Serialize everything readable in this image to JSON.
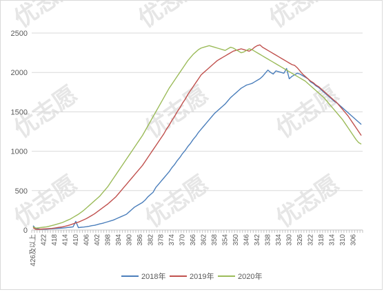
{
  "chart_data": {
    "type": "line",
    "title": "",
    "xlabel": "",
    "ylabel": "",
    "ylim": [
      0,
      2500
    ],
    "yticks": [
      0,
      500,
      1000,
      1500,
      2000,
      2500
    ],
    "x": [
      "426及以上",
      425,
      424,
      423,
      422,
      421,
      420,
      419,
      418,
      417,
      416,
      415,
      414,
      413,
      412,
      411,
      410,
      409,
      408,
      407,
      406,
      405,
      404,
      403,
      402,
      401,
      400,
      399,
      398,
      397,
      396,
      395,
      394,
      393,
      392,
      391,
      390,
      389,
      388,
      387,
      386,
      385,
      384,
      383,
      382,
      381,
      380,
      379,
      378,
      377,
      376,
      375,
      374,
      373,
      372,
      371,
      370,
      369,
      368,
      367,
      366,
      365,
      364,
      363,
      362,
      361,
      360,
      359,
      358,
      357,
      356,
      355,
      354,
      353,
      352,
      351,
      350,
      349,
      348,
      347,
      346,
      345,
      344,
      343,
      342,
      341,
      340,
      339,
      338,
      337,
      336,
      335,
      334,
      333,
      332,
      331,
      330,
      329,
      328,
      327,
      326,
      325,
      324,
      323,
      322,
      321,
      320,
      319,
      318,
      317,
      316,
      315,
      314,
      313,
      312,
      311,
      310,
      309,
      308,
      307,
      306,
      305,
      304,
      303
    ],
    "x_tick_labels": [
      "426及以上",
      "422",
      "418",
      "414",
      "410",
      "406",
      "402",
      "398",
      "394",
      "390",
      "386",
      "382",
      "378",
      "374",
      "370",
      "366",
      "362",
      "358",
      "354",
      "350",
      "346",
      "342",
      "338",
      "334",
      "330",
      "326",
      "322",
      "318",
      "314",
      "310",
      "306"
    ],
    "grid": true,
    "legend_position": "bottom",
    "series": [
      {
        "name": "2018年",
        "color": "#4a7ebb",
        "values": [
          55,
          20,
          15,
          10,
          12,
          10,
          14,
          16,
          18,
          20,
          22,
          25,
          28,
          32,
          36,
          40,
          110,
          30,
          35,
          38,
          42,
          48,
          55,
          60,
          68,
          78,
          85,
          95,
          105,
          115,
          125,
          140,
          155,
          170,
          185,
          200,
          230,
          260,
          290,
          310,
          330,
          350,
          380,
          420,
          450,
          480,
          540,
          580,
          620,
          660,
          700,
          740,
          790,
          830,
          880,
          920,
          970,
          1010,
          1060,
          1100,
          1150,
          1190,
          1240,
          1280,
          1320,
          1360,
          1400,
          1440,
          1480,
          1510,
          1540,
          1570,
          1600,
          1640,
          1680,
          1710,
          1740,
          1770,
          1800,
          1820,
          1840,
          1850,
          1860,
          1880,
          1900,
          1920,
          1950,
          1990,
          2030,
          2000,
          1980,
          2020,
          2010,
          2000,
          1990,
          2050,
          1920,
          1950,
          1970,
          1990,
          1980,
          1960,
          1940,
          1920,
          1880,
          1860,
          1830,
          1810,
          1780,
          1750,
          1720,
          1690,
          1660,
          1630,
          1610,
          1580,
          1550,
          1520,
          1490,
          1460,
          1430,
          1400,
          1370,
          1340
        ]
      },
      {
        "name": "2019年",
        "color": "#c0504d",
        "values": [
          30,
          10,
          8,
          12,
          14,
          16,
          18,
          20,
          25,
          30,
          35,
          40,
          48,
          56,
          66,
          78,
          90,
          100,
          115,
          130,
          145,
          165,
          185,
          205,
          230,
          255,
          280,
          305,
          330,
          360,
          390,
          420,
          460,
          500,
          540,
          580,
          620,
          660,
          700,
          740,
          780,
          820,
          870,
          920,
          970,
          1020,
          1070,
          1120,
          1170,
          1220,
          1280,
          1330,
          1390,
          1440,
          1500,
          1550,
          1610,
          1660,
          1720,
          1770,
          1820,
          1870,
          1920,
          1970,
          2000,
          2030,
          2060,
          2090,
          2120,
          2150,
          2170,
          2190,
          2210,
          2230,
          2250,
          2270,
          2280,
          2290,
          2300,
          2290,
          2280,
          2270,
          2290,
          2320,
          2340,
          2350,
          2320,
          2300,
          2280,
          2260,
          2240,
          2220,
          2200,
          2180,
          2160,
          2140,
          2120,
          2100,
          2090,
          2060,
          2020,
          1980,
          1950,
          1920,
          1890,
          1870,
          1840,
          1820,
          1790,
          1760,
          1730,
          1700,
          1670,
          1640,
          1610,
          1570,
          1530,
          1490,
          1450,
          1400,
          1350,
          1300,
          1250,
          1200
        ]
      },
      {
        "name": "2020年",
        "color": "#9bbb59",
        "values": [
          40,
          25,
          28,
          32,
          36,
          40,
          48,
          56,
          65,
          75,
          85,
          95,
          110,
          125,
          140,
          160,
          180,
          200,
          225,
          250,
          280,
          310,
          340,
          370,
          400,
          430,
          470,
          510,
          550,
          600,
          650,
          700,
          750,
          800,
          850,
          900,
          950,
          1000,
          1050,
          1100,
          1150,
          1200,
          1260,
          1320,
          1380,
          1440,
          1500,
          1560,
          1620,
          1680,
          1740,
          1800,
          1850,
          1900,
          1950,
          2000,
          2050,
          2100,
          2150,
          2190,
          2230,
          2260,
          2290,
          2310,
          2320,
          2330,
          2340,
          2330,
          2320,
          2310,
          2300,
          2290,
          2280,
          2300,
          2320,
          2310,
          2290,
          2270,
          2250,
          2260,
          2280,
          2300,
          2290,
          2270,
          2250,
          2230,
          2210,
          2190,
          2170,
          2150,
          2130,
          2110,
          2090,
          2070,
          2050,
          2030,
          2010,
          1990,
          1970,
          1950,
          1930,
          1910,
          1890,
          1860,
          1830,
          1800,
          1770,
          1740,
          1710,
          1680,
          1640,
          1600,
          1560,
          1520,
          1480,
          1440,
          1400,
          1350,
          1300,
          1250,
          1200,
          1150,
          1110,
          1090
        ]
      }
    ]
  },
  "watermark": {
    "text": "优志愿"
  }
}
